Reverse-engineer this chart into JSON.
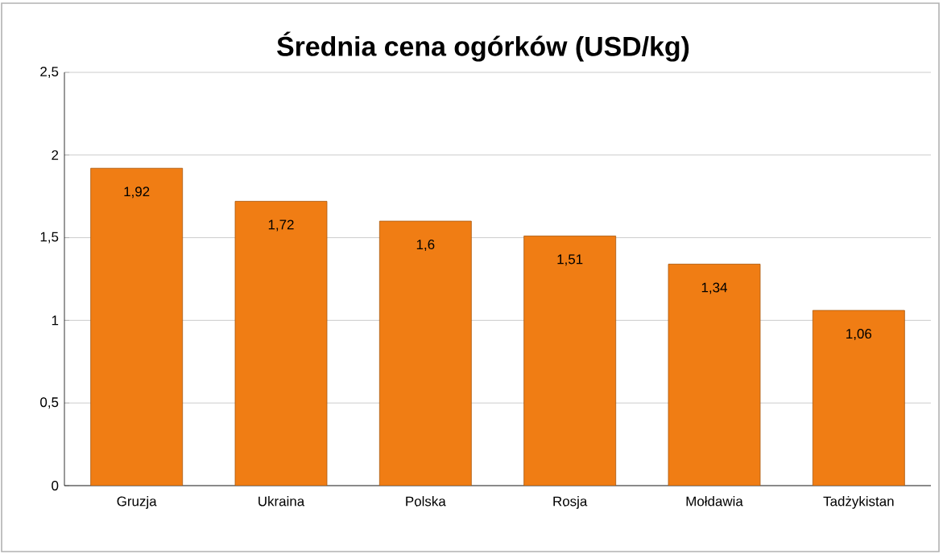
{
  "chart_data": {
    "type": "bar",
    "title": "Średnia cena ogórków (USD/kg)",
    "categories": [
      "Gruzja",
      "Ukraina",
      "Polska",
      "Rosja",
      "Mołdawia",
      "Tadżykistan"
    ],
    "values": [
      1.92,
      1.72,
      1.6,
      1.51,
      1.34,
      1.06
    ],
    "value_labels": [
      "1,92",
      "1,72",
      "1,6",
      "1,51",
      "1,34",
      "1,06"
    ],
    "color": "#f07d14",
    "ylim": [
      0,
      2.5
    ],
    "yticks": [
      0,
      {
        "value": 0.5,
        "label": "0,5"
      },
      1,
      {
        "value": 1.5,
        "label": "1,5"
      },
      2,
      {
        "value": 2.5,
        "label": "2,5"
      }
    ],
    "grid": "y"
  }
}
